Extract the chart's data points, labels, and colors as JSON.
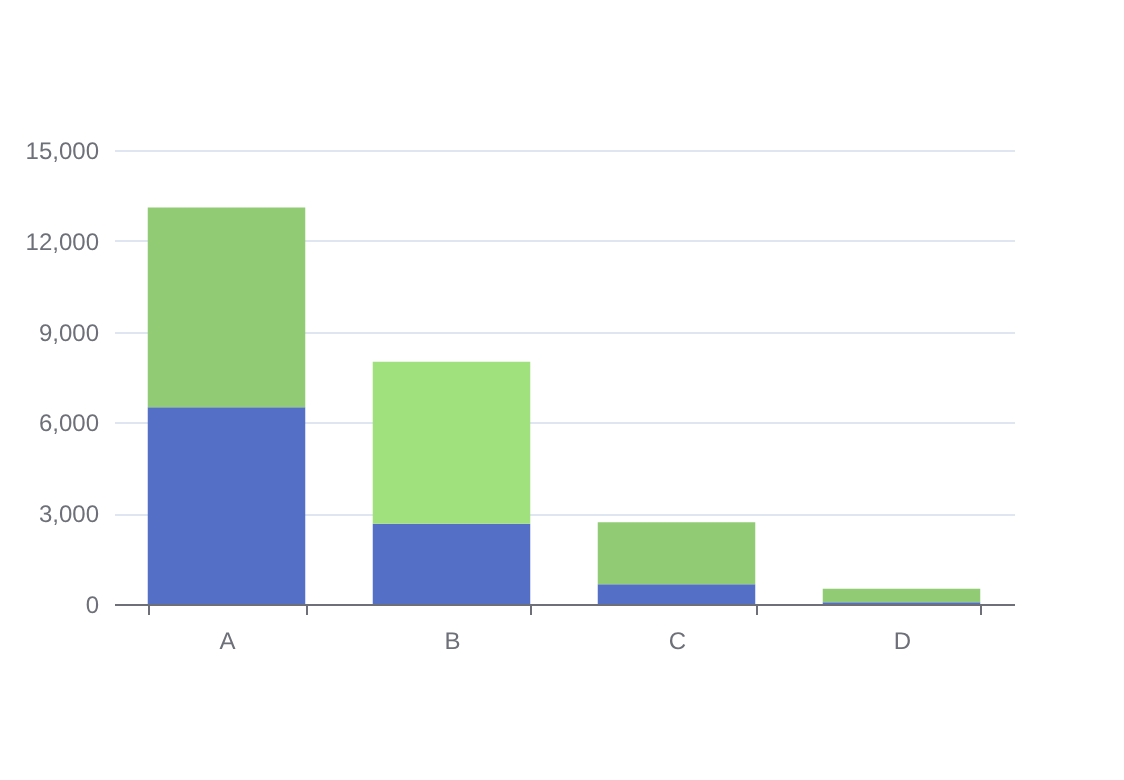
{
  "chart_data": {
    "type": "bar",
    "stacked": true,
    "categories": [
      "A",
      "B",
      "C",
      "D"
    ],
    "series": [
      {
        "color": "#5470c6",
        "values": [
          6500,
          2650,
          650,
          60
        ]
      },
      {
        "colors": [
          "#91cc75",
          "#a0e07d",
          "#91cc75",
          "#91cc75"
        ],
        "values": [
          6600,
          5350,
          2050,
          440
        ]
      }
    ],
    "ylim": [
      0,
      15000
    ],
    "yticks": [
      0,
      {
        "value": 3000,
        "label": "3,000"
      },
      {
        "value": 6000,
        "label": "6,000"
      },
      {
        "value": 9000,
        "label": "9,000"
      },
      {
        "value": 12000,
        "label": "12,000"
      },
      {
        "value": 15000,
        "label": "15,000"
      }
    ],
    "grid": "y"
  }
}
